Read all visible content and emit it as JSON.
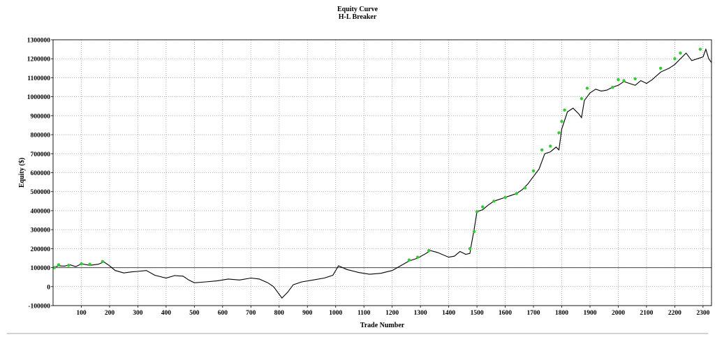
{
  "chart_data": {
    "type": "line",
    "title": "Equity Curve",
    "subtitle": "H-L Breaker",
    "xlabel": "Trade Number",
    "ylabel": "Equity ($)",
    "xlim": [
      0,
      2330
    ],
    "ylim": [
      -100000,
      1300000
    ],
    "xticks": [
      100,
      200,
      300,
      400,
      500,
      600,
      700,
      800,
      900,
      1000,
      1100,
      1200,
      1300,
      1400,
      1500,
      1600,
      1700,
      1800,
      1900,
      2000,
      2100,
      2200,
      2300
    ],
    "yticks": [
      -100000,
      0,
      100000,
      200000,
      300000,
      400000,
      500000,
      600000,
      700000,
      800000,
      900000,
      1000000,
      1100000,
      1200000,
      1300000
    ],
    "grid": true,
    "baseline": 100000,
    "line_color": "#000000",
    "marker_color": "#33cc33",
    "series": [
      {
        "x": [
          0,
          20,
          40,
          60,
          80,
          100,
          130,
          160,
          180,
          200,
          220,
          250,
          280,
          300,
          330,
          360,
          400,
          430,
          460,
          480,
          500,
          540,
          580,
          620,
          660,
          700,
          730,
          760,
          780,
          800,
          810,
          830,
          850,
          880,
          920,
          960,
          990,
          1010,
          1040,
          1080,
          1120,
          1160,
          1200,
          1230,
          1260,
          1290,
          1320,
          1335,
          1360,
          1400,
          1420,
          1440,
          1460,
          1475,
          1480,
          1490,
          1500,
          1520,
          1540,
          1560,
          1600,
          1620,
          1640,
          1660,
          1680,
          1700,
          1720,
          1740,
          1760,
          1780,
          1790,
          1800,
          1820,
          1840,
          1860,
          1870,
          1880,
          1900,
          1920,
          1940,
          1960,
          1980,
          2000,
          2020,
          2040,
          2060,
          2080,
          2100,
          2120,
          2150,
          2180,
          2200,
          2220,
          2240,
          2260,
          2280,
          2300,
          2310,
          2320,
          2330
        ],
        "y": [
          100000,
          110000,
          108000,
          115000,
          105000,
          120000,
          112000,
          118000,
          130000,
          110000,
          85000,
          72000,
          78000,
          80000,
          85000,
          60000,
          45000,
          58000,
          55000,
          35000,
          20000,
          25000,
          30000,
          40000,
          35000,
          45000,
          40000,
          20000,
          0,
          -40000,
          -60000,
          -30000,
          10000,
          25000,
          35000,
          45000,
          60000,
          110000,
          90000,
          75000,
          65000,
          70000,
          85000,
          110000,
          135000,
          150000,
          175000,
          190000,
          180000,
          155000,
          160000,
          185000,
          170000,
          175000,
          220000,
          300000,
          395000,
          405000,
          430000,
          450000,
          470000,
          480000,
          490000,
          510000,
          540000,
          580000,
          620000,
          700000,
          710000,
          735000,
          720000,
          830000,
          920000,
          940000,
          910000,
          890000,
          980000,
          1020000,
          1040000,
          1030000,
          1035000,
          1050000,
          1060000,
          1080000,
          1070000,
          1060000,
          1085000,
          1070000,
          1090000,
          1130000,
          1150000,
          1170000,
          1200000,
          1230000,
          1190000,
          1200000,
          1210000,
          1250000,
          1200000,
          1180000
        ]
      }
    ],
    "markers": {
      "x": [
        5,
        20,
        55,
        100,
        130,
        175,
        1260,
        1290,
        1330,
        1475,
        1490,
        1500,
        1520,
        1560,
        1600,
        1640,
        1670,
        1700,
        1730,
        1760,
        1790,
        1800,
        1810,
        1870,
        1890,
        1980,
        2000,
        2020,
        2060,
        2150,
        2200,
        2220,
        2290
      ],
      "y": [
        100000,
        115000,
        112000,
        120000,
        118000,
        132000,
        140000,
        155000,
        190000,
        200000,
        290000,
        395000,
        420000,
        450000,
        470000,
        490000,
        520000,
        610000,
        720000,
        740000,
        810000,
        870000,
        930000,
        990000,
        1045000,
        1050000,
        1090000,
        1085000,
        1095000,
        1150000,
        1200000,
        1230000,
        1250000
      ]
    }
  }
}
